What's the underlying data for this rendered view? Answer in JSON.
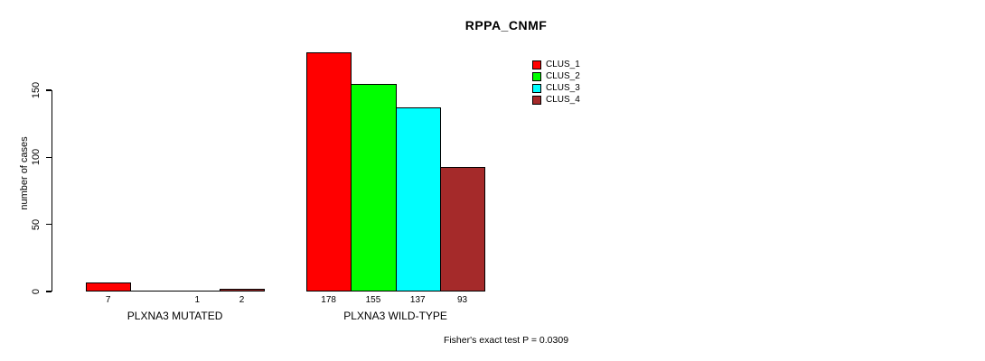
{
  "chart_data": {
    "type": "bar",
    "title": "RPPA_CNMF",
    "ylabel": "number of cases",
    "xlabel": "",
    "ylim": [
      0,
      150
    ],
    "yticks": [
      0,
      50,
      100,
      150
    ],
    "grid": false,
    "legend_position": "top-right",
    "categories": [
      "PLXNA3 MUTATED",
      "PLXNA3 WILD-TYPE"
    ],
    "series": [
      {
        "name": "CLUS_1",
        "color": "#FF0000",
        "values": [
          7,
          178
        ]
      },
      {
        "name": "CLUS_2",
        "color": "#00FF00",
        "values": [
          0,
          155
        ]
      },
      {
        "name": "CLUS_3",
        "color": "#00FFFF",
        "values": [
          1,
          137
        ]
      },
      {
        "name": "CLUS_4",
        "color": "#A52A2A",
        "values": [
          2,
          93
        ]
      }
    ],
    "bar_value_labels": [
      [
        "7",
        "",
        "1",
        "2"
      ],
      [
        "178",
        "155",
        "137",
        "93"
      ]
    ],
    "annotation": "Fisher's exact test P = 0.0309",
    "axis_color": "#000000",
    "background_color": "#FFFFFF"
  }
}
